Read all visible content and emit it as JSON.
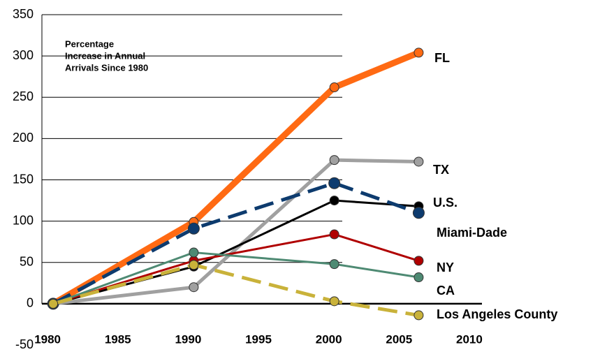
{
  "chart_data": {
    "type": "line",
    "annotation": [
      "Percentage",
      "Increase in Annual",
      "Arrivals Since 1980"
    ],
    "x": [
      1980,
      1990,
      2000,
      2006
    ],
    "series": [
      {
        "name": "FL",
        "color": "#ff6a13",
        "values": [
          0,
          99,
          262,
          304
        ]
      },
      {
        "name": "TX",
        "color": "#a0a0a0",
        "values": [
          0,
          20,
          174,
          172
        ]
      },
      {
        "name": "U.S.",
        "color": "#000000",
        "values": [
          0,
          45,
          125,
          118
        ]
      },
      {
        "name": "Miami-Dade",
        "color": "#0d3b6e",
        "dashed": true,
        "values": [
          0,
          91,
          146,
          110
        ]
      },
      {
        "name": "NY",
        "color": "#b00000",
        "values": [
          0,
          52,
          84,
          52
        ]
      },
      {
        "name": "CA",
        "color": "#4e8a73",
        "values": [
          0,
          62,
          48,
          32
        ]
      },
      {
        "name": "Los Angeles County",
        "color": "#c9b23a",
        "dashed": true,
        "values": [
          0,
          47,
          3,
          -14
        ]
      }
    ],
    "xlim": [
      1979.2,
      2010.5
    ],
    "xticks": [
      1980,
      1985,
      1990,
      1995,
      2000,
      2005,
      2010
    ],
    "ylim": [
      -50,
      350
    ],
    "yticks": [
      -50,
      0,
      50,
      100,
      150,
      200,
      250,
      300,
      350
    ],
    "grid": true
  }
}
